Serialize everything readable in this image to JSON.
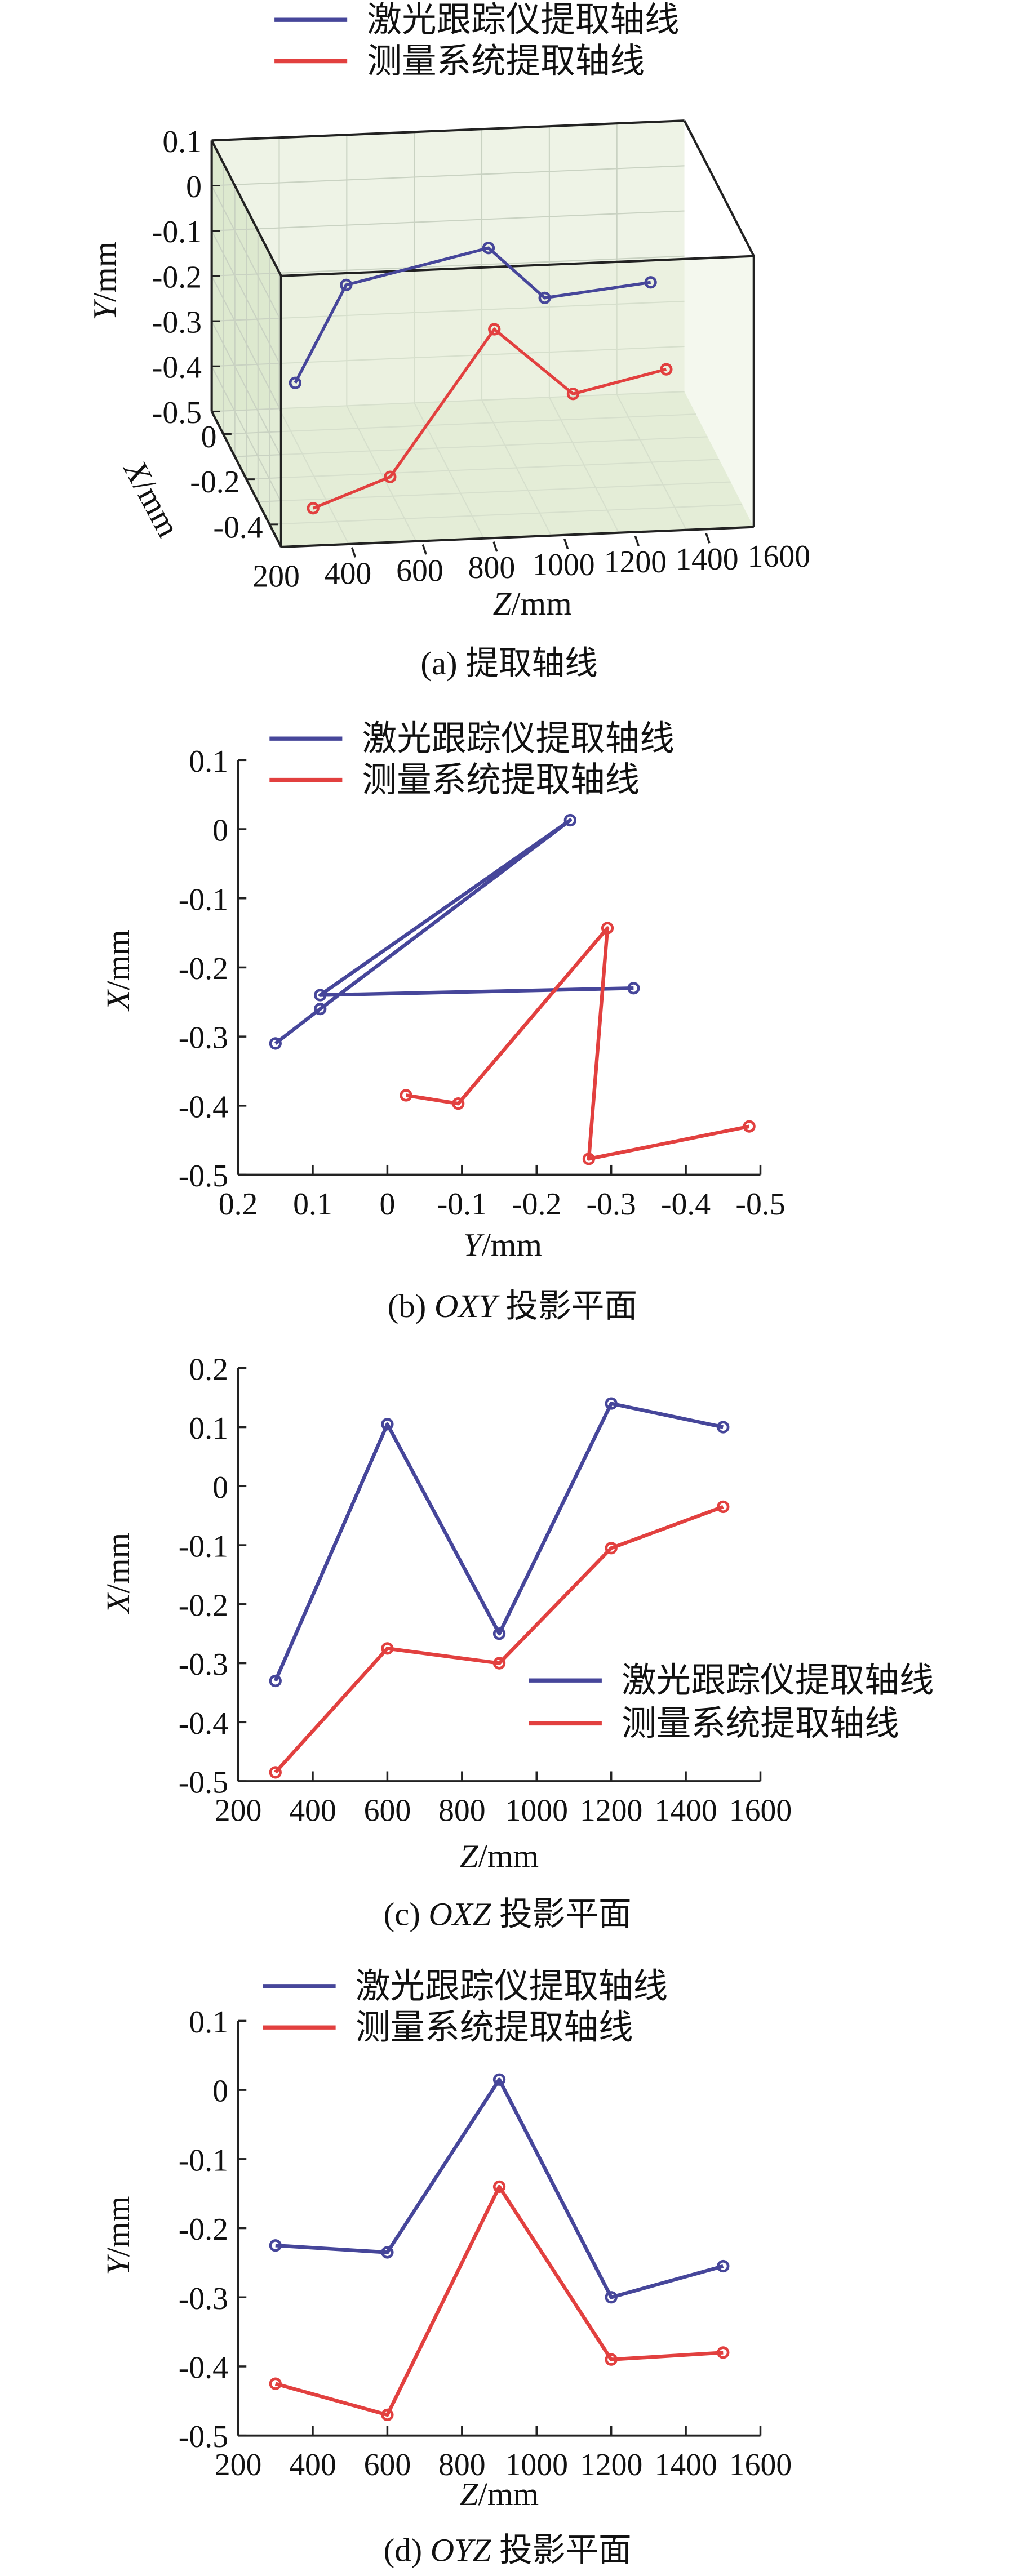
{
  "colors": {
    "laser": "#46469a",
    "system": "#e2403f",
    "box_fill": "#e6efd9",
    "grid": "#c9d2c2"
  },
  "legend": [
    "激光跟踪仪提取轴线",
    "测量系统提取轴线"
  ],
  "chart_data": [
    {
      "id": "a",
      "type": "line3d",
      "caption": {
        "prefix": "(a) ",
        "italic": "",
        "suffix": "提取轴线"
      },
      "xlabel": {
        "var": "Z",
        "unit": "/mm"
      },
      "ylabel": {
        "var": "Y",
        "unit": "/mm"
      },
      "zlabel": {
        "var": "X",
        "unit": "/mm"
      },
      "z_ticks": [
        "200",
        "400",
        "600",
        "800",
        "1000",
        "1200",
        "1400",
        "1600"
      ],
      "y_ticks": [
        "0.1",
        "0",
        "-0.1",
        "-0.2",
        "-0.3",
        "-0.4",
        "-0.5"
      ],
      "x_ticks": [
        "0",
        "-0.2",
        "-0.4"
      ],
      "zlim": [
        200,
        1600
      ],
      "ylim": [
        -0.5,
        0.1
      ],
      "xlim": [
        -0.5,
        0.1
      ],
      "grid": true,
      "series": [
        {
          "name": "激光跟踪仪提取轴线",
          "Z": [
            300,
            600,
            900,
            1200,
            1500
          ],
          "X": [
            -0.33,
            0.105,
            -0.25,
            0.14,
            0.1
          ],
          "Y": [
            -0.225,
            -0.235,
            0.015,
            -0.3,
            -0.255
          ]
        },
        {
          "name": "测量系统提取轴线",
          "Z": [
            300,
            600,
            900,
            1200,
            1500
          ],
          "X": [
            -0.485,
            -0.275,
            -0.3,
            -0.105,
            -0.035
          ],
          "Y": [
            -0.425,
            -0.47,
            -0.14,
            -0.39,
            -0.38
          ]
        }
      ]
    },
    {
      "id": "b",
      "type": "line",
      "caption": {
        "prefix": "(b) ",
        "italic": "OXY",
        "suffix": " 投影平面"
      },
      "xlabel": {
        "var": "Y",
        "unit": "/mm"
      },
      "ylabel": {
        "var": "X",
        "unit": "/mm"
      },
      "xlim": [
        0.2,
        -0.5
      ],
      "ylim": [
        -0.5,
        0.1
      ],
      "x_ticks": [
        0.2,
        0.1,
        0,
        -0.1,
        -0.2,
        -0.3,
        -0.4,
        -0.5
      ],
      "x_tick_labels": [
        "0.2",
        "0.1",
        "0",
        "-0.1",
        "-0.2",
        "-0.3",
        "-0.4",
        "-0.5"
      ],
      "y_ticks": [
        0.1,
        0,
        -0.1,
        -0.2,
        -0.3,
        -0.4,
        -0.5
      ],
      "y_tick_labels": [
        "0.1",
        "0",
        "-0.1",
        "-0.2",
        "-0.3",
        "-0.4",
        "-0.5"
      ],
      "legend_position": "top",
      "series": [
        {
          "name": "激光跟踪仪提取轴线",
          "x": [
            0.15,
            0.09,
            -0.245,
            0.09,
            -0.33
          ],
          "y": [
            -0.31,
            -0.26,
            0.013,
            -0.24,
            -0.23
          ]
        },
        {
          "name": "测量系统提取轴线",
          "x": [
            -0.025,
            -0.095,
            -0.295,
            -0.27,
            -0.485
          ],
          "y": [
            -0.385,
            -0.397,
            -0.143,
            -0.477,
            -0.43
          ]
        }
      ]
    },
    {
      "id": "c",
      "type": "line",
      "caption": {
        "prefix": "(c) ",
        "italic": "OXZ",
        "suffix": " 投影平面"
      },
      "xlabel": {
        "var": "Z",
        "unit": "/mm"
      },
      "ylabel": {
        "var": "X",
        "unit": "/mm"
      },
      "xlim": [
        200,
        1600
      ],
      "ylim": [
        -0.5,
        0.2
      ],
      "x_ticks": [
        200,
        400,
        600,
        800,
        1000,
        1200,
        1400,
        1600
      ],
      "x_tick_labels": [
        "200",
        "400",
        "600",
        "800",
        "1000",
        "1200",
        "1400",
        "1600"
      ],
      "y_ticks": [
        0.2,
        0.1,
        0,
        -0.1,
        -0.2,
        -0.3,
        -0.4,
        -0.5
      ],
      "y_tick_labels": [
        "0.2",
        "0.1",
        "0",
        "-0.1",
        "-0.2",
        "-0.3",
        "-0.4",
        "-0.5"
      ],
      "legend_position": "bottom-right",
      "series": [
        {
          "name": "激光跟踪仪提取轴线",
          "x": [
            300,
            600,
            900,
            1200,
            1500
          ],
          "y": [
            -0.33,
            0.105,
            -0.25,
            0.14,
            0.1
          ]
        },
        {
          "name": "测量系统提取轴线",
          "x": [
            300,
            600,
            900,
            1200,
            1500
          ],
          "y": [
            -0.485,
            -0.275,
            -0.3,
            -0.105,
            -0.035
          ]
        }
      ]
    },
    {
      "id": "d",
      "type": "line",
      "caption": {
        "prefix": "(d) ",
        "italic": "OYZ",
        "suffix": " 投影平面"
      },
      "xlabel": {
        "var": "Z",
        "unit": "/mm"
      },
      "ylabel": {
        "var": "Y",
        "unit": "/mm"
      },
      "xlim": [
        200,
        1600
      ],
      "ylim": [
        -0.5,
        0.1
      ],
      "x_ticks": [
        200,
        400,
        600,
        800,
        1000,
        1200,
        1400,
        1600
      ],
      "x_tick_labels": [
        "200",
        "400",
        "600",
        "800",
        "1000",
        "1200",
        "1400",
        "1600"
      ],
      "y_ticks": [
        0.1,
        0,
        -0.1,
        -0.2,
        -0.3,
        -0.4,
        -0.5
      ],
      "y_tick_labels": [
        "0.1",
        "0",
        "-0.1",
        "-0.2",
        "-0.3",
        "-0.4",
        "-0.5"
      ],
      "legend_position": "top",
      "series": [
        {
          "name": "激光跟踪仪提取轴线",
          "x": [
            300,
            600,
            900,
            1200,
            1500
          ],
          "y": [
            -0.225,
            -0.235,
            0.015,
            -0.3,
            -0.255
          ]
        },
        {
          "name": "测量系统提取轴线",
          "x": [
            300,
            600,
            900,
            1200,
            1500
          ],
          "y": [
            -0.425,
            -0.47,
            -0.14,
            -0.39,
            -0.38
          ]
        }
      ]
    }
  ]
}
